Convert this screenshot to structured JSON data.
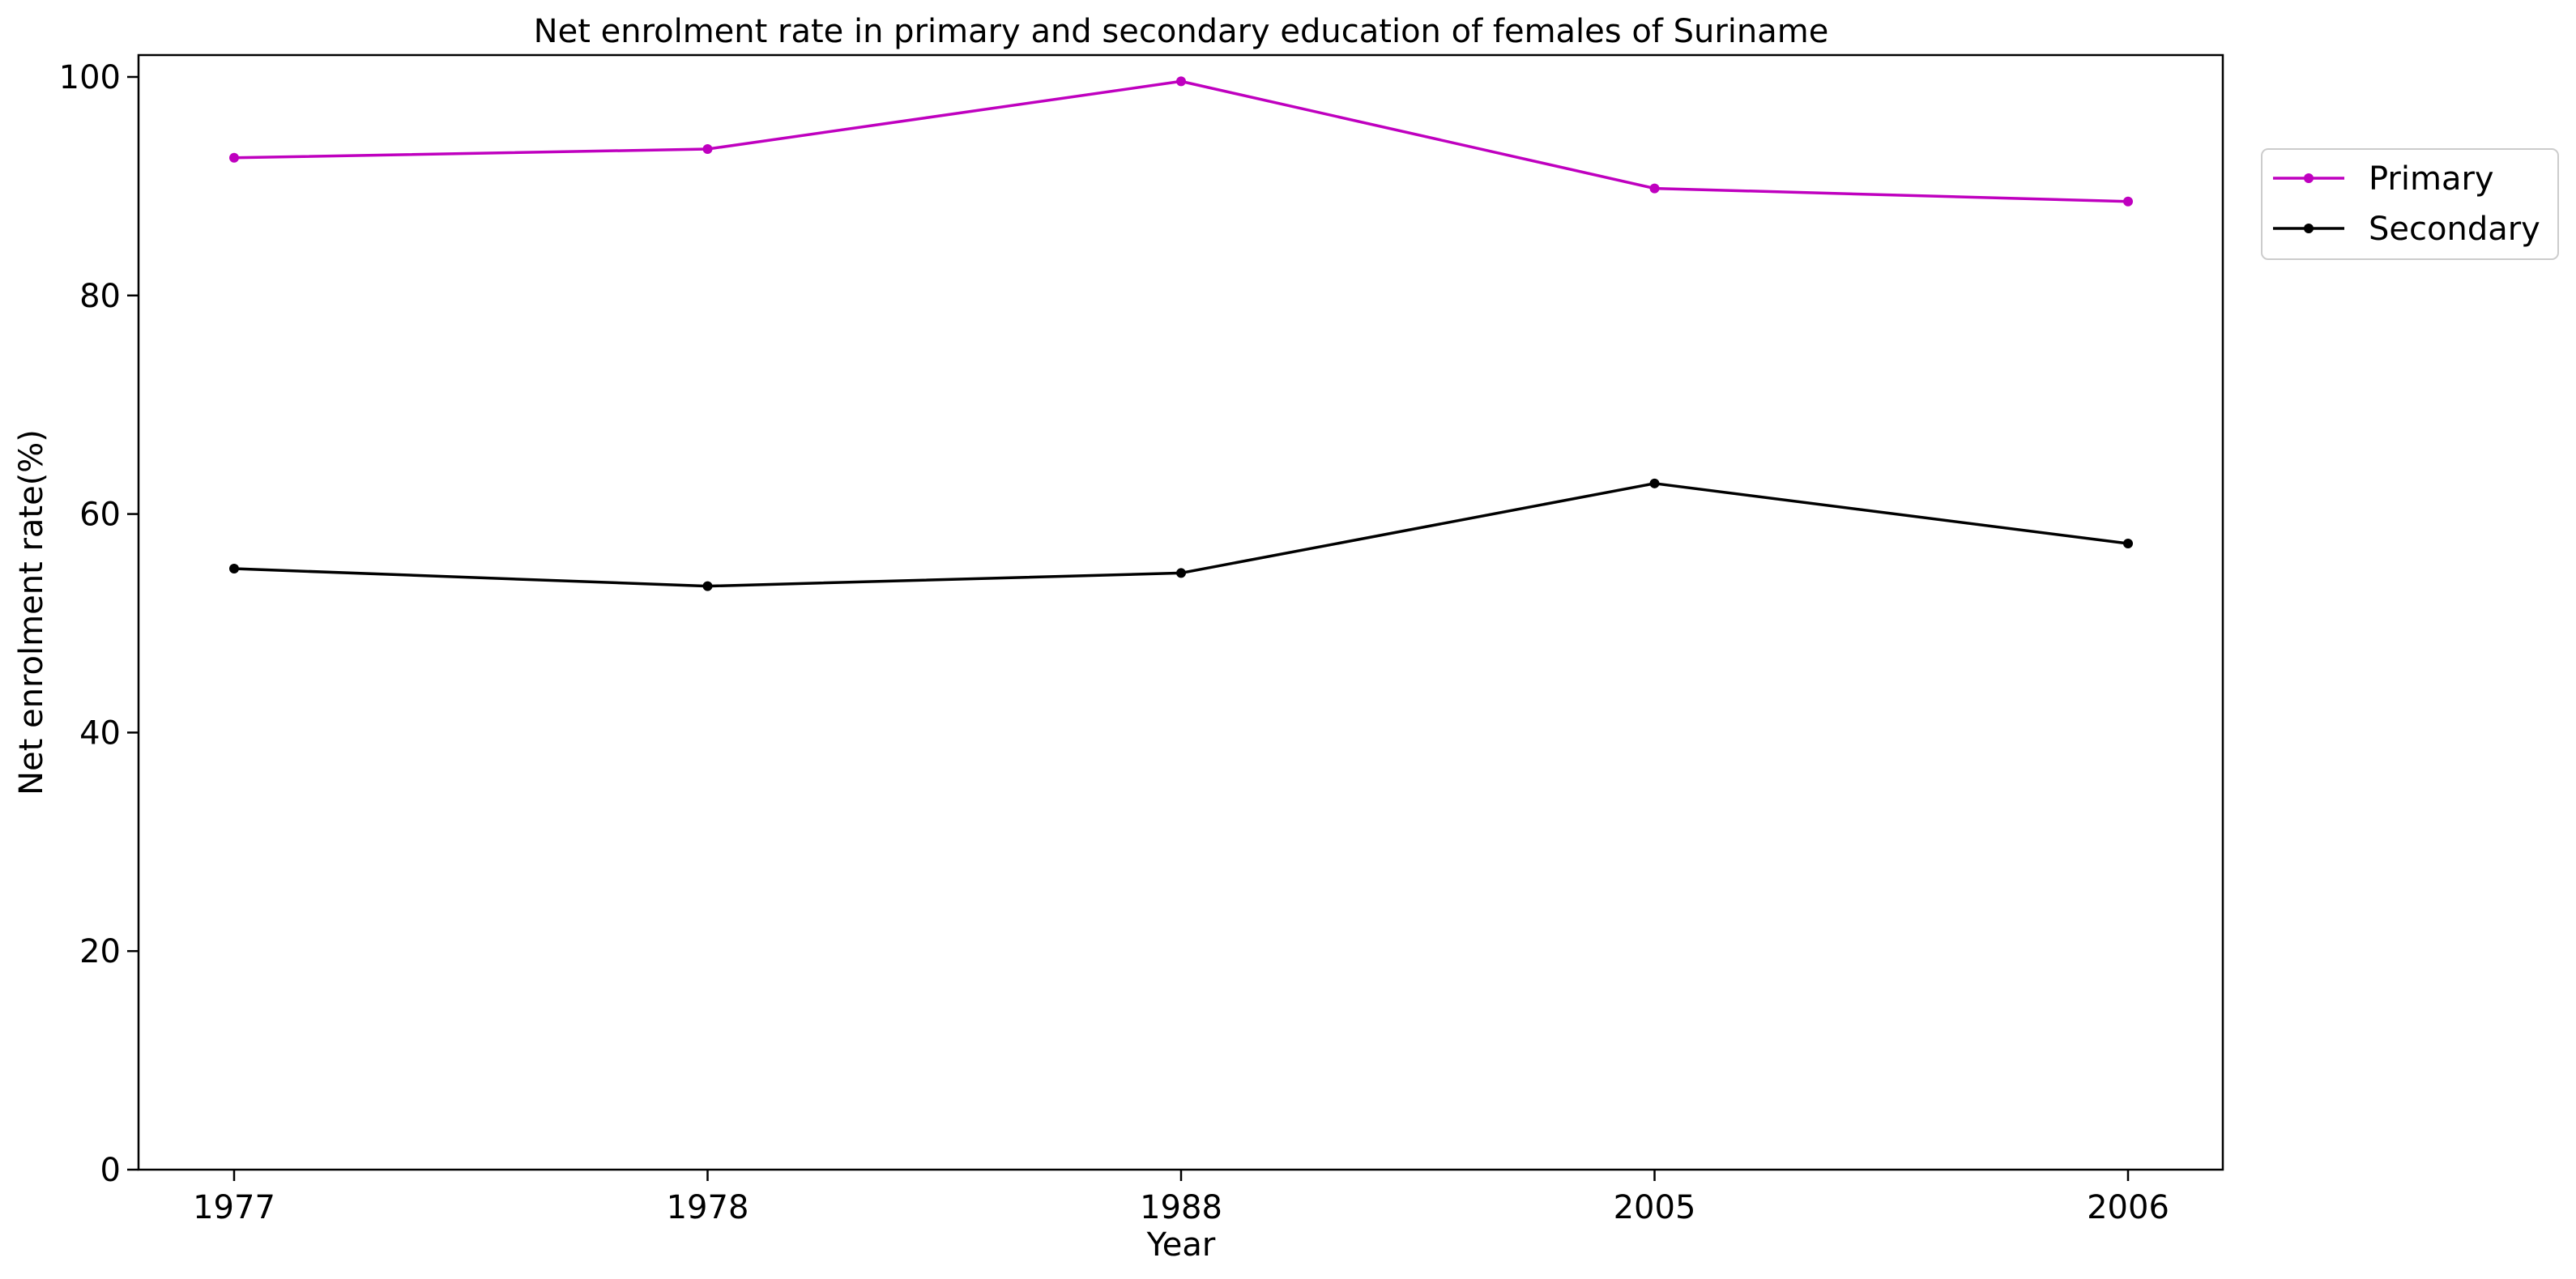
{
  "chart_data": {
    "type": "line",
    "title": "Net enrolment rate in primary and secondary education of females of Suriname",
    "xlabel": "Year",
    "ylabel": "Net enrolment rate(%)",
    "categories": [
      "1977",
      "1978",
      "1988",
      "2005",
      "2006"
    ],
    "ylim": [
      0,
      102
    ],
    "yticks": [
      0,
      20,
      40,
      60,
      80,
      100
    ],
    "legend_position": "outside-top-right",
    "grid": false,
    "series": [
      {
        "name": "Primary",
        "color": "#bf00bf",
        "values": [
          92.6,
          93.4,
          99.6,
          89.8,
          88.6
        ]
      },
      {
        "name": "Secondary",
        "color": "#000000",
        "values": [
          55.0,
          53.4,
          54.6,
          62.8,
          57.3
        ]
      }
    ]
  }
}
